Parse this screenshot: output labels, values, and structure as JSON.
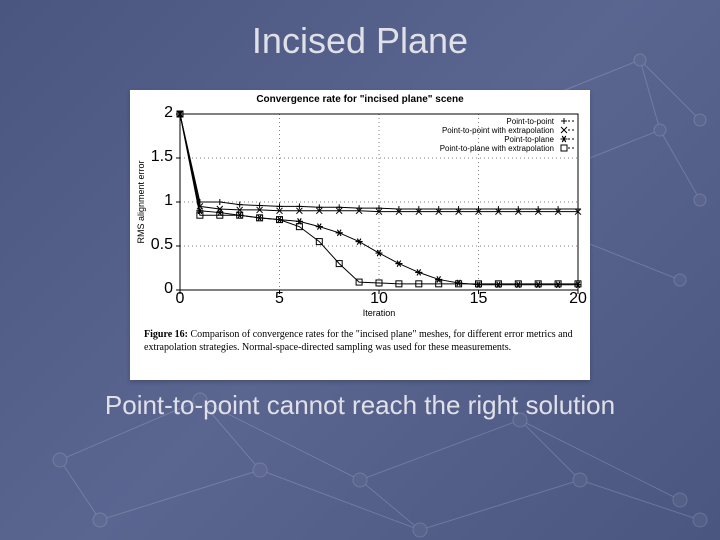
{
  "slide": {
    "title": "Incised Plane",
    "caption": "Point-to-point cannot reach the right solution",
    "background_color": "#545f88",
    "title_color": "#e0e0e8",
    "title_fontsize": 36,
    "caption_color": "#e0e0e8",
    "caption_fontsize": 26
  },
  "figure": {
    "card_bg": "#ffffff",
    "chart": {
      "type": "line",
      "title": "Convergence rate for \"incised plane\" scene",
      "title_fontsize": 10,
      "xlabel": "Iteration",
      "ylabel": "RMS alignment error",
      "label_fontsize": 9,
      "xlim": [
        0,
        20
      ],
      "ylim": [
        0,
        2
      ],
      "xtick_step": 5,
      "ytick_step": 0.5,
      "grid": true,
      "grid_color": "#000000",
      "grid_dash": "1 3",
      "background_color": "#ffffff",
      "axis_color": "#000000",
      "line_width": 1,
      "marker_size": 3,
      "legend": {
        "position": "top-right",
        "fontsize": 8,
        "items": [
          {
            "label": "Point-to-point",
            "marker": "plus"
          },
          {
            "label": "Point-to-point with extrapolation",
            "marker": "x"
          },
          {
            "label": "Point-to-plane",
            "marker": "star"
          },
          {
            "label": "Point-to-plane with extrapolation",
            "marker": "square"
          }
        ]
      },
      "series": [
        {
          "name": "Point-to-point",
          "marker": "plus",
          "color": "#000000",
          "x": [
            0,
            1,
            2,
            3,
            4,
            5,
            6,
            7,
            8,
            9,
            10,
            11,
            12,
            13,
            14,
            15,
            16,
            17,
            18,
            19,
            20
          ],
          "y": [
            2.0,
            1.0,
            1.0,
            0.97,
            0.96,
            0.95,
            0.95,
            0.94,
            0.94,
            0.93,
            0.93,
            0.92,
            0.92,
            0.92,
            0.92,
            0.92,
            0.92,
            0.92,
            0.92,
            0.92,
            0.92
          ]
        },
        {
          "name": "Point-to-point with extrapolation",
          "marker": "x",
          "color": "#000000",
          "x": [
            0,
            1,
            2,
            3,
            4,
            5,
            6,
            7,
            8,
            9,
            10,
            11,
            12,
            13,
            14,
            15,
            16,
            17,
            18,
            19,
            20
          ],
          "y": [
            2.0,
            0.95,
            0.92,
            0.91,
            0.91,
            0.9,
            0.9,
            0.9,
            0.9,
            0.9,
            0.89,
            0.89,
            0.89,
            0.89,
            0.89,
            0.89,
            0.89,
            0.89,
            0.89,
            0.89,
            0.89
          ]
        },
        {
          "name": "Point-to-plane",
          "marker": "star",
          "color": "#000000",
          "x": [
            0,
            1,
            2,
            3,
            4,
            5,
            6,
            7,
            8,
            9,
            10,
            11,
            12,
            13,
            14,
            15,
            16,
            17,
            18,
            19,
            20
          ],
          "y": [
            2.0,
            0.9,
            0.88,
            0.85,
            0.82,
            0.8,
            0.78,
            0.72,
            0.65,
            0.55,
            0.42,
            0.3,
            0.2,
            0.12,
            0.08,
            0.06,
            0.06,
            0.06,
            0.06,
            0.06,
            0.06
          ]
        },
        {
          "name": "Point-to-plane with extrapolation",
          "marker": "square",
          "color": "#000000",
          "x": [
            0,
            1,
            2,
            3,
            4,
            5,
            6,
            7,
            8,
            9,
            10,
            11,
            12,
            13,
            14,
            15,
            16,
            17,
            18,
            19,
            20
          ],
          "y": [
            2.0,
            0.85,
            0.85,
            0.85,
            0.82,
            0.8,
            0.72,
            0.55,
            0.3,
            0.09,
            0.08,
            0.07,
            0.07,
            0.07,
            0.07,
            0.07,
            0.07,
            0.07,
            0.07,
            0.07,
            0.07
          ]
        }
      ]
    },
    "caption": {
      "number": "Figure 16:",
      "text": "Comparison of convergence rates for the \"incised plane\" meshes, for different error metrics and extrapolation strategies. Normal-space-directed sampling was used for these measurements.",
      "fontsize": 10,
      "font_family": "Times New Roman"
    }
  }
}
